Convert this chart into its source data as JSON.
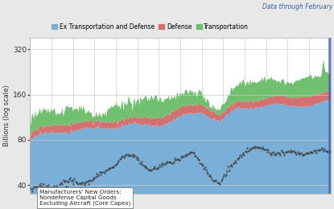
{
  "ylabel": "Billions (log scale)",
  "legend_items": [
    "Ex Transportation and Defense",
    "Defense",
    "Transportation"
  ],
  "legend_colors": [
    "#7ab0d8",
    "#d47070",
    "#70c070"
  ],
  "data_note": "Data through February",
  "annotation_text": "Manufacturers' New Orders:\nNondefense Capital Goods\nExcluding Aircraft (Core Capex)",
  "ylim_log": [
    35,
    380
  ],
  "yticks": [
    40,
    80,
    160,
    320
  ],
  "background_color": "#e8e8e8",
  "plot_bg_color": "#ffffff",
  "area_color_base": "#7ab0d8",
  "area_color_defense": "#d47070",
  "area_color_transport": "#70c070",
  "line_color": "#444444",
  "n_points": 300,
  "grid_color": "#cccccc",
  "last_bar_color": "#4466bb"
}
